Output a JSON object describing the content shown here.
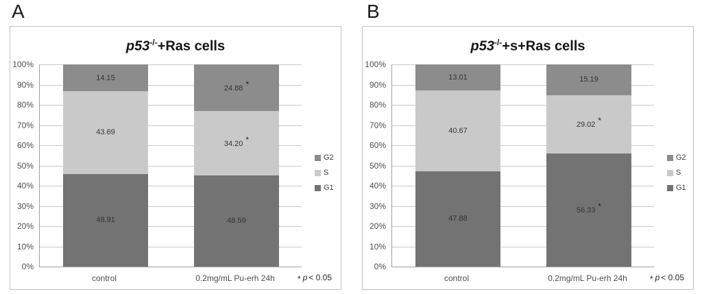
{
  "colors": {
    "g1": "#737373",
    "s": "#c9c9c9",
    "g2": "#8c8c8c",
    "gridline": "#c9c9c9",
    "axis": "#9e9e9e",
    "panel_border": "#bfbfbf"
  },
  "panel_labels": [
    "A",
    "B"
  ],
  "chart_data": [
    {
      "type": "bar",
      "subtype": "100%-stacked-column",
      "title": "p53-/-+Ras cells",
      "title_parts": {
        "italic": "p53",
        "superscript": "-/-",
        "rest": "+Ras cells"
      },
      "categories": [
        "control",
        "0.2mg/mL Pu-erh 24h"
      ],
      "series": [
        {
          "name": "G1",
          "color_key": "g1",
          "values": [
            "48.91",
            "48.59"
          ],
          "starred": [
            false,
            false
          ]
        },
        {
          "name": "S",
          "color_key": "s",
          "values": [
            "43.69",
            "34.20"
          ],
          "starred": [
            false,
            true
          ]
        },
        {
          "name": "G2",
          "color_key": "g2",
          "values": [
            "14.15",
            "24.88"
          ],
          "starred": [
            false,
            true
          ]
        }
      ],
      "xlabel": "",
      "ylabel": "",
      "ylim": [
        0,
        100
      ],
      "grid": true,
      "yticks": [
        "0%",
        "10%",
        "20%",
        "30%",
        "40%",
        "50%",
        "60%",
        "70%",
        "80%",
        "90%",
        "100%"
      ],
      "legend": {
        "position": "right",
        "items": [
          {
            "label": "G2",
            "color_key": "g2"
          },
          {
            "label": "S",
            "color_key": "s"
          },
          {
            "label": "G1",
            "color_key": "g1"
          }
        ]
      },
      "footnote": {
        "symbol": "*",
        "variable": "p",
        "comparison": "< 0.05"
      }
    },
    {
      "type": "bar",
      "subtype": "100%-stacked-column",
      "title": "p53-/-+s+Ras cells",
      "title_parts": {
        "italic": "p53",
        "superscript": "-/-",
        "rest": "+s+Ras cells"
      },
      "categories": [
        "control",
        "0.2mg/mL Pu-erh 24h"
      ],
      "series": [
        {
          "name": "G1",
          "color_key": "g1",
          "values": [
            "47.88",
            "56.33"
          ],
          "starred": [
            false,
            true
          ]
        },
        {
          "name": "S",
          "color_key": "s",
          "values": [
            "40.67",
            "29.02"
          ],
          "starred": [
            false,
            true
          ]
        },
        {
          "name": "G2",
          "color_key": "g2",
          "values": [
            "13.01",
            "15.19"
          ],
          "starred": [
            false,
            false
          ]
        }
      ],
      "xlabel": "",
      "ylabel": "",
      "ylim": [
        0,
        100
      ],
      "grid": true,
      "yticks": [
        "0%",
        "10%",
        "20%",
        "30%",
        "40%",
        "50%",
        "60%",
        "70%",
        "80%",
        "90%",
        "100%"
      ],
      "legend": {
        "position": "right",
        "items": [
          {
            "label": "G2",
            "color_key": "g2"
          },
          {
            "label": "S",
            "color_key": "s"
          },
          {
            "label": "G1",
            "color_key": "g1"
          }
        ]
      },
      "footnote": {
        "symbol": "*",
        "variable": "p",
        "comparison": "< 0.05"
      }
    }
  ]
}
